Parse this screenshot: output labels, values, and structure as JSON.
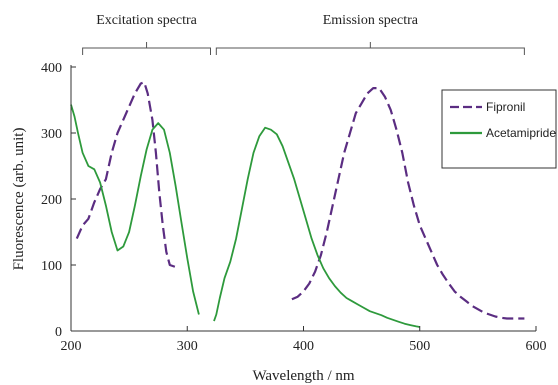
{
  "chart_data": {
    "type": "line",
    "xlabel": "Wavelength  / nm",
    "ylabel": "Fluorescence (arb. unit)",
    "xlim": [
      200,
      600
    ],
    "ylim": [
      0,
      400
    ],
    "xticks": [
      200,
      300,
      400,
      500,
      600
    ],
    "yticks": [
      0,
      100,
      200,
      300,
      400
    ],
    "grid": false,
    "legend_position": "top-right",
    "annotations": [
      {
        "text": "Excitation spectra",
        "x_range": [
          210,
          320
        ]
      },
      {
        "text": "Emission spectra",
        "x_range": [
          325,
          590
        ]
      }
    ],
    "series": [
      {
        "name": "Fipronil",
        "color": "#5b2d82",
        "style": "dashed",
        "segments": [
          [
            [
              205,
              140
            ],
            [
              210,
              160
            ],
            [
              215,
              170
            ],
            [
              220,
              195
            ],
            [
              225,
              215
            ],
            [
              230,
              230
            ],
            [
              235,
              270
            ],
            [
              240,
              300
            ],
            [
              245,
              320
            ],
            [
              250,
              340
            ],
            [
              255,
              360
            ],
            [
              260,
              375
            ],
            [
              263,
              377
            ],
            [
              266,
              360
            ],
            [
              270,
              320
            ],
            [
              273,
              270
            ],
            [
              276,
              210
            ],
            [
              279,
              160
            ],
            [
              282,
              120
            ],
            [
              285,
              100
            ],
            [
              290,
              97
            ]
          ],
          [
            [
              390,
              48
            ],
            [
              395,
              52
            ],
            [
              400,
              60
            ],
            [
              405,
              72
            ],
            [
              410,
              90
            ],
            [
              415,
              115
            ],
            [
              420,
              150
            ],
            [
              425,
              190
            ],
            [
              430,
              230
            ],
            [
              435,
              270
            ],
            [
              440,
              300
            ],
            [
              445,
              330
            ],
            [
              450,
              345
            ],
            [
              455,
              360
            ],
            [
              460,
              368
            ],
            [
              465,
              368
            ],
            [
              470,
              355
            ],
            [
              475,
              335
            ],
            [
              480,
              305
            ],
            [
              485,
              270
            ],
            [
              490,
              225
            ],
            [
              495,
              190
            ],
            [
              500,
              160
            ],
            [
              505,
              140
            ],
            [
              510,
              120
            ],
            [
              515,
              100
            ],
            [
              520,
              85
            ],
            [
              525,
              72
            ],
            [
              530,
              60
            ],
            [
              535,
              52
            ],
            [
              540,
              45
            ],
            [
              545,
              38
            ],
            [
              550,
              33
            ],
            [
              555,
              28
            ],
            [
              560,
              25
            ],
            [
              565,
              22
            ],
            [
              570,
              20
            ],
            [
              575,
              19
            ],
            [
              580,
              19
            ],
            [
              585,
              19
            ],
            [
              590,
              19
            ]
          ]
        ]
      },
      {
        "name": "Acetamipride",
        "color": "#2e9a3c",
        "style": "solid",
        "segments": [
          [
            [
              200,
              343
            ],
            [
              203,
              325
            ],
            [
              206,
              300
            ],
            [
              210,
              270
            ],
            [
              215,
              250
            ],
            [
              220,
              245
            ],
            [
              225,
              225
            ],
            [
              230,
              190
            ],
            [
              235,
              150
            ],
            [
              240,
              122
            ],
            [
              245,
              128
            ],
            [
              250,
              150
            ],
            [
              255,
              190
            ],
            [
              260,
              235
            ],
            [
              265,
              275
            ],
            [
              270,
              305
            ],
            [
              275,
              315
            ],
            [
              280,
              305
            ],
            [
              285,
              270
            ],
            [
              290,
              220
            ],
            [
              295,
              165
            ],
            [
              300,
              110
            ],
            [
              305,
              60
            ],
            [
              310,
              25
            ]
          ],
          [
            [
              323,
              15
            ],
            [
              325,
              25
            ],
            [
              328,
              50
            ],
            [
              332,
              80
            ],
            [
              337,
              105
            ],
            [
              342,
              140
            ],
            [
              347,
              185
            ],
            [
              352,
              230
            ],
            [
              357,
              270
            ],
            [
              362,
              295
            ],
            [
              367,
              308
            ],
            [
              372,
              305
            ],
            [
              377,
              298
            ],
            [
              382,
              280
            ],
            [
              387,
              255
            ],
            [
              392,
              230
            ],
            [
              397,
              200
            ],
            [
              402,
              170
            ],
            [
              407,
              140
            ],
            [
              412,
              115
            ],
            [
              417,
              95
            ],
            [
              422,
              80
            ],
            [
              427,
              68
            ],
            [
              432,
              58
            ],
            [
              437,
              50
            ],
            [
              442,
              45
            ],
            [
              447,
              40
            ],
            [
              452,
              35
            ],
            [
              457,
              30
            ],
            [
              462,
              27
            ],
            [
              467,
              24
            ],
            [
              472,
              20
            ],
            [
              477,
              17
            ],
            [
              482,
              14
            ],
            [
              487,
              11
            ],
            [
              492,
              9
            ],
            [
              497,
              7
            ],
            [
              500,
              6
            ]
          ]
        ]
      }
    ]
  }
}
